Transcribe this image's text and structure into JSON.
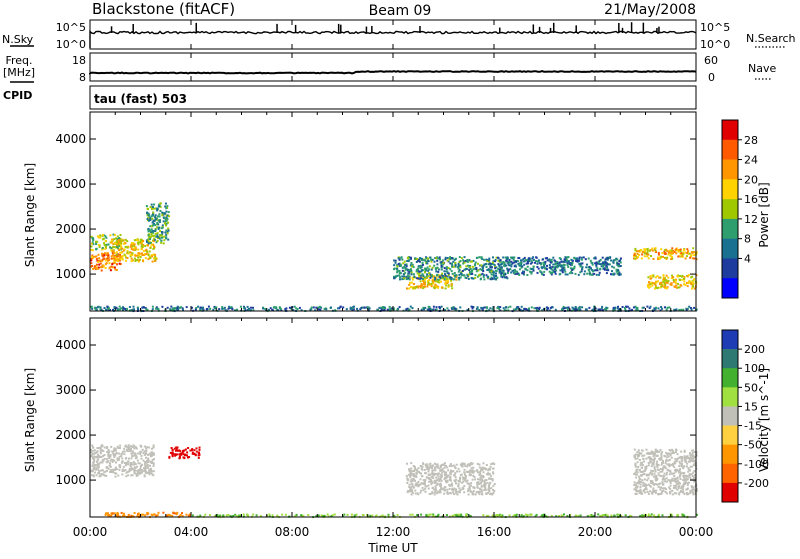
{
  "header": {
    "station": "Blackstone (fitACF)",
    "beam": "Beam 09",
    "date": "21/May/2008"
  },
  "side_labels": {
    "nsky": "N.Sky",
    "freq_line1": "Freq.",
    "freq_line2": "[MHz]",
    "cpid": "CPID",
    "nsearch": "N.Search",
    "nave": "Nave"
  },
  "cpid_text": "tau (fast) 503",
  "time_axis": {
    "label": "Time UT",
    "ticks": [
      "00:00",
      "04:00",
      "08:00",
      "12:00",
      "16:00",
      "20:00",
      "00:00"
    ]
  },
  "noise_panel": {
    "left_ticks": [
      "10^5",
      "10^0"
    ],
    "right_ticks": [
      "10^5",
      "10^0"
    ]
  },
  "freq_panel": {
    "left_ticks": [
      "18",
      "8"
    ],
    "right_ticks": [
      "60",
      "0"
    ]
  },
  "range_axis": {
    "label": "Slant Range [km]",
    "ticks": [
      "4000",
      "3000",
      "2000",
      "1000"
    ]
  },
  "power_scale": {
    "label": "Power [dB]",
    "ticks": [
      "28",
      "24",
      "20",
      "16",
      "12",
      "8",
      "4"
    ],
    "colors": [
      "#e00000",
      "#ff5a00",
      "#ff9600",
      "#ffd200",
      "#a0c800",
      "#2e9e6e",
      "#1a7090",
      "#1e3c9e",
      "#0000ff"
    ]
  },
  "velocity_scale": {
    "label": "Velocity [m s^-1]",
    "ticks": [
      "200",
      "100",
      "50",
      "15",
      "-15",
      "-50",
      "-100",
      "-200"
    ],
    "colors": [
      "#1e3cb4",
      "#2e7a72",
      "#44b030",
      "#a0e040",
      "#c0c0b8",
      "#ffd040",
      "#ff9600",
      "#ff6400",
      "#e00000"
    ]
  },
  "chart_data": [
    {
      "type": "line",
      "title": "N.Sky / N.Search",
      "x": [
        "00:00",
        "24:00"
      ],
      "series": [
        {
          "name": "N.Sky",
          "values": [
            10000.0,
            10000.0
          ]
        },
        {
          "name": "N.Search",
          "values": [
            10000.0,
            10000.0
          ]
        }
      ]
    },
    {
      "type": "line",
      "title": "Freq. / Nave",
      "x": [
        "00:00",
        "10:30",
        "24:00"
      ],
      "series": [
        {
          "name": "Freq. [MHz]",
          "values": [
            10.5,
            10.5,
            10.8
          ]
        },
        {
          "name": "Nave",
          "values": [
            0,
            0,
            0
          ]
        }
      ]
    },
    {
      "type": "heatmap",
      "title": "Power [dB]",
      "xlabel": "Time UT",
      "ylabel": "Slant Range [km]",
      "xlim": [
        0,
        24
      ],
      "ylim": [
        180,
        4600
      ],
      "regions": [
        {
          "t": [
            0.0,
            1.2
          ],
          "r": [
            1100,
            1500
          ],
          "v": 24
        },
        {
          "t": [
            0.0,
            1.2
          ],
          "r": [
            1550,
            1900
          ],
          "v": 14
        },
        {
          "t": [
            0.8,
            2.6
          ],
          "r": [
            1300,
            1800
          ],
          "v": 18
        },
        {
          "t": [
            2.2,
            3.1
          ],
          "r": [
            1700,
            2600
          ],
          "v": 10
        },
        {
          "t": [
            12.5,
            14.5
          ],
          "r": [
            700,
            1000
          ],
          "v": 18
        },
        {
          "t": [
            12.0,
            16.5
          ],
          "r": [
            900,
            1400
          ],
          "v": 8
        },
        {
          "t": [
            16.0,
            21.0
          ],
          "r": [
            1000,
            1400
          ],
          "v": 6
        },
        {
          "t": [
            21.5,
            24.0
          ],
          "r": [
            1350,
            1600
          ],
          "v": 20
        },
        {
          "t": [
            22.0,
            24.0
          ],
          "r": [
            700,
            1000
          ],
          "v": 18
        },
        {
          "t": [
            0.0,
            24.0
          ],
          "r": [
            200,
            300
          ],
          "v": 6
        }
      ]
    },
    {
      "type": "heatmap",
      "title": "Velocity [m s^-1]",
      "xlabel": "Time UT",
      "ylabel": "Slant Range [km]",
      "xlim": [
        0,
        24
      ],
      "ylim": [
        180,
        4600
      ],
      "regions": [
        {
          "t": [
            0.0,
            2.5
          ],
          "r": [
            1100,
            1800
          ],
          "v": 0
        },
        {
          "t": [
            3.1,
            4.3
          ],
          "r": [
            1500,
            1750
          ],
          "v": -200
        },
        {
          "t": [
            12.5,
            16.0
          ],
          "r": [
            700,
            1400
          ],
          "v": 0
        },
        {
          "t": [
            21.5,
            24.0
          ],
          "r": [
            700,
            1700
          ],
          "v": 0
        },
        {
          "t": [
            0.5,
            4.0
          ],
          "r": [
            200,
            300
          ],
          "v": -70
        },
        {
          "t": [
            4.0,
            24.0
          ],
          "r": [
            200,
            260
          ],
          "v": 30
        }
      ]
    }
  ]
}
